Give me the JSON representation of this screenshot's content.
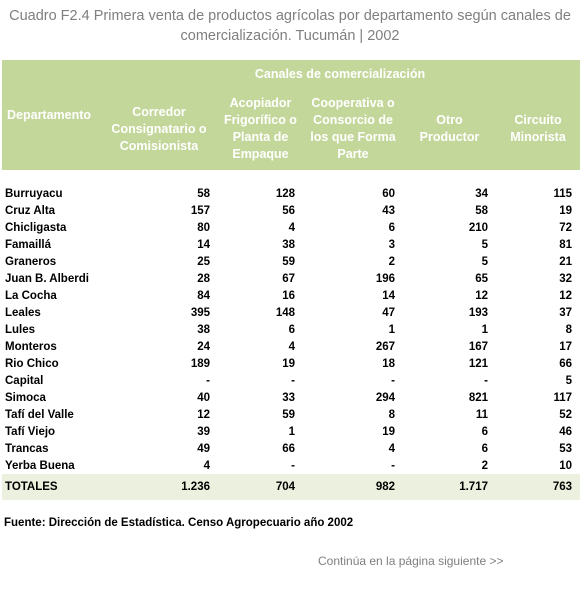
{
  "header": {
    "title": "Cuadro F2.4 Primera venta de productos agrícolas por departamento según canales de comercialización. Tucumán | 2002"
  },
  "table": {
    "group_header": "Canales de comercialización",
    "columns": [
      "Departamento",
      "Corredor Consignatario o Comisionista",
      "Acopiador Frigorífico o Planta de Empaque",
      "Cooperativa o Consorcio de los que Forma Parte",
      "Otro Productor",
      "Circuito Minorista"
    ],
    "rows": [
      [
        "Burruyacu",
        "58",
        "128",
        "60",
        "34",
        "115"
      ],
      [
        "Cruz Alta",
        "157",
        "56",
        "43",
        "58",
        "19"
      ],
      [
        "Chicligasta",
        "80",
        "4",
        "6",
        "210",
        "72"
      ],
      [
        "Famaillá",
        "14",
        "38",
        "3",
        "5",
        "81"
      ],
      [
        "Graneros",
        "25",
        "59",
        "2",
        "5",
        "21"
      ],
      [
        "Juan B. Alberdi",
        "28",
        "67",
        "196",
        "65",
        "32"
      ],
      [
        "La Cocha",
        "84",
        "16",
        "14",
        "12",
        "12"
      ],
      [
        "Leales",
        "395",
        "148",
        "47",
        "193",
        "37"
      ],
      [
        "Lules",
        "38",
        "6",
        "1",
        "1",
        "8"
      ],
      [
        "Monteros",
        "24",
        "4",
        "267",
        "167",
        "17"
      ],
      [
        "Rio Chico",
        "189",
        "19",
        "18",
        "121",
        "66"
      ],
      [
        "Capital",
        "-",
        "-",
        "-",
        "-",
        "5"
      ],
      [
        "Simoca",
        "40",
        "33",
        "294",
        "821",
        "117"
      ],
      [
        "Tafí del Valle",
        "12",
        "59",
        "8",
        "11",
        "52"
      ],
      [
        "Tafí Viejo",
        "39",
        "1",
        "19",
        "6",
        "46"
      ],
      [
        "Trancas",
        "49",
        "66",
        "4",
        "6",
        "53"
      ],
      [
        "Yerba Buena",
        "4",
        "-",
        "-",
        "2",
        "10"
      ]
    ],
    "totals": [
      "TOTALES",
      "1.236",
      "704",
      "982",
      "1.717",
      "763"
    ]
  },
  "footer": {
    "source": "Fuente: Dirección de Estadística.  Censo Agropecuario año 2002",
    "continue": "Continúa en la página siguiente >>"
  }
}
